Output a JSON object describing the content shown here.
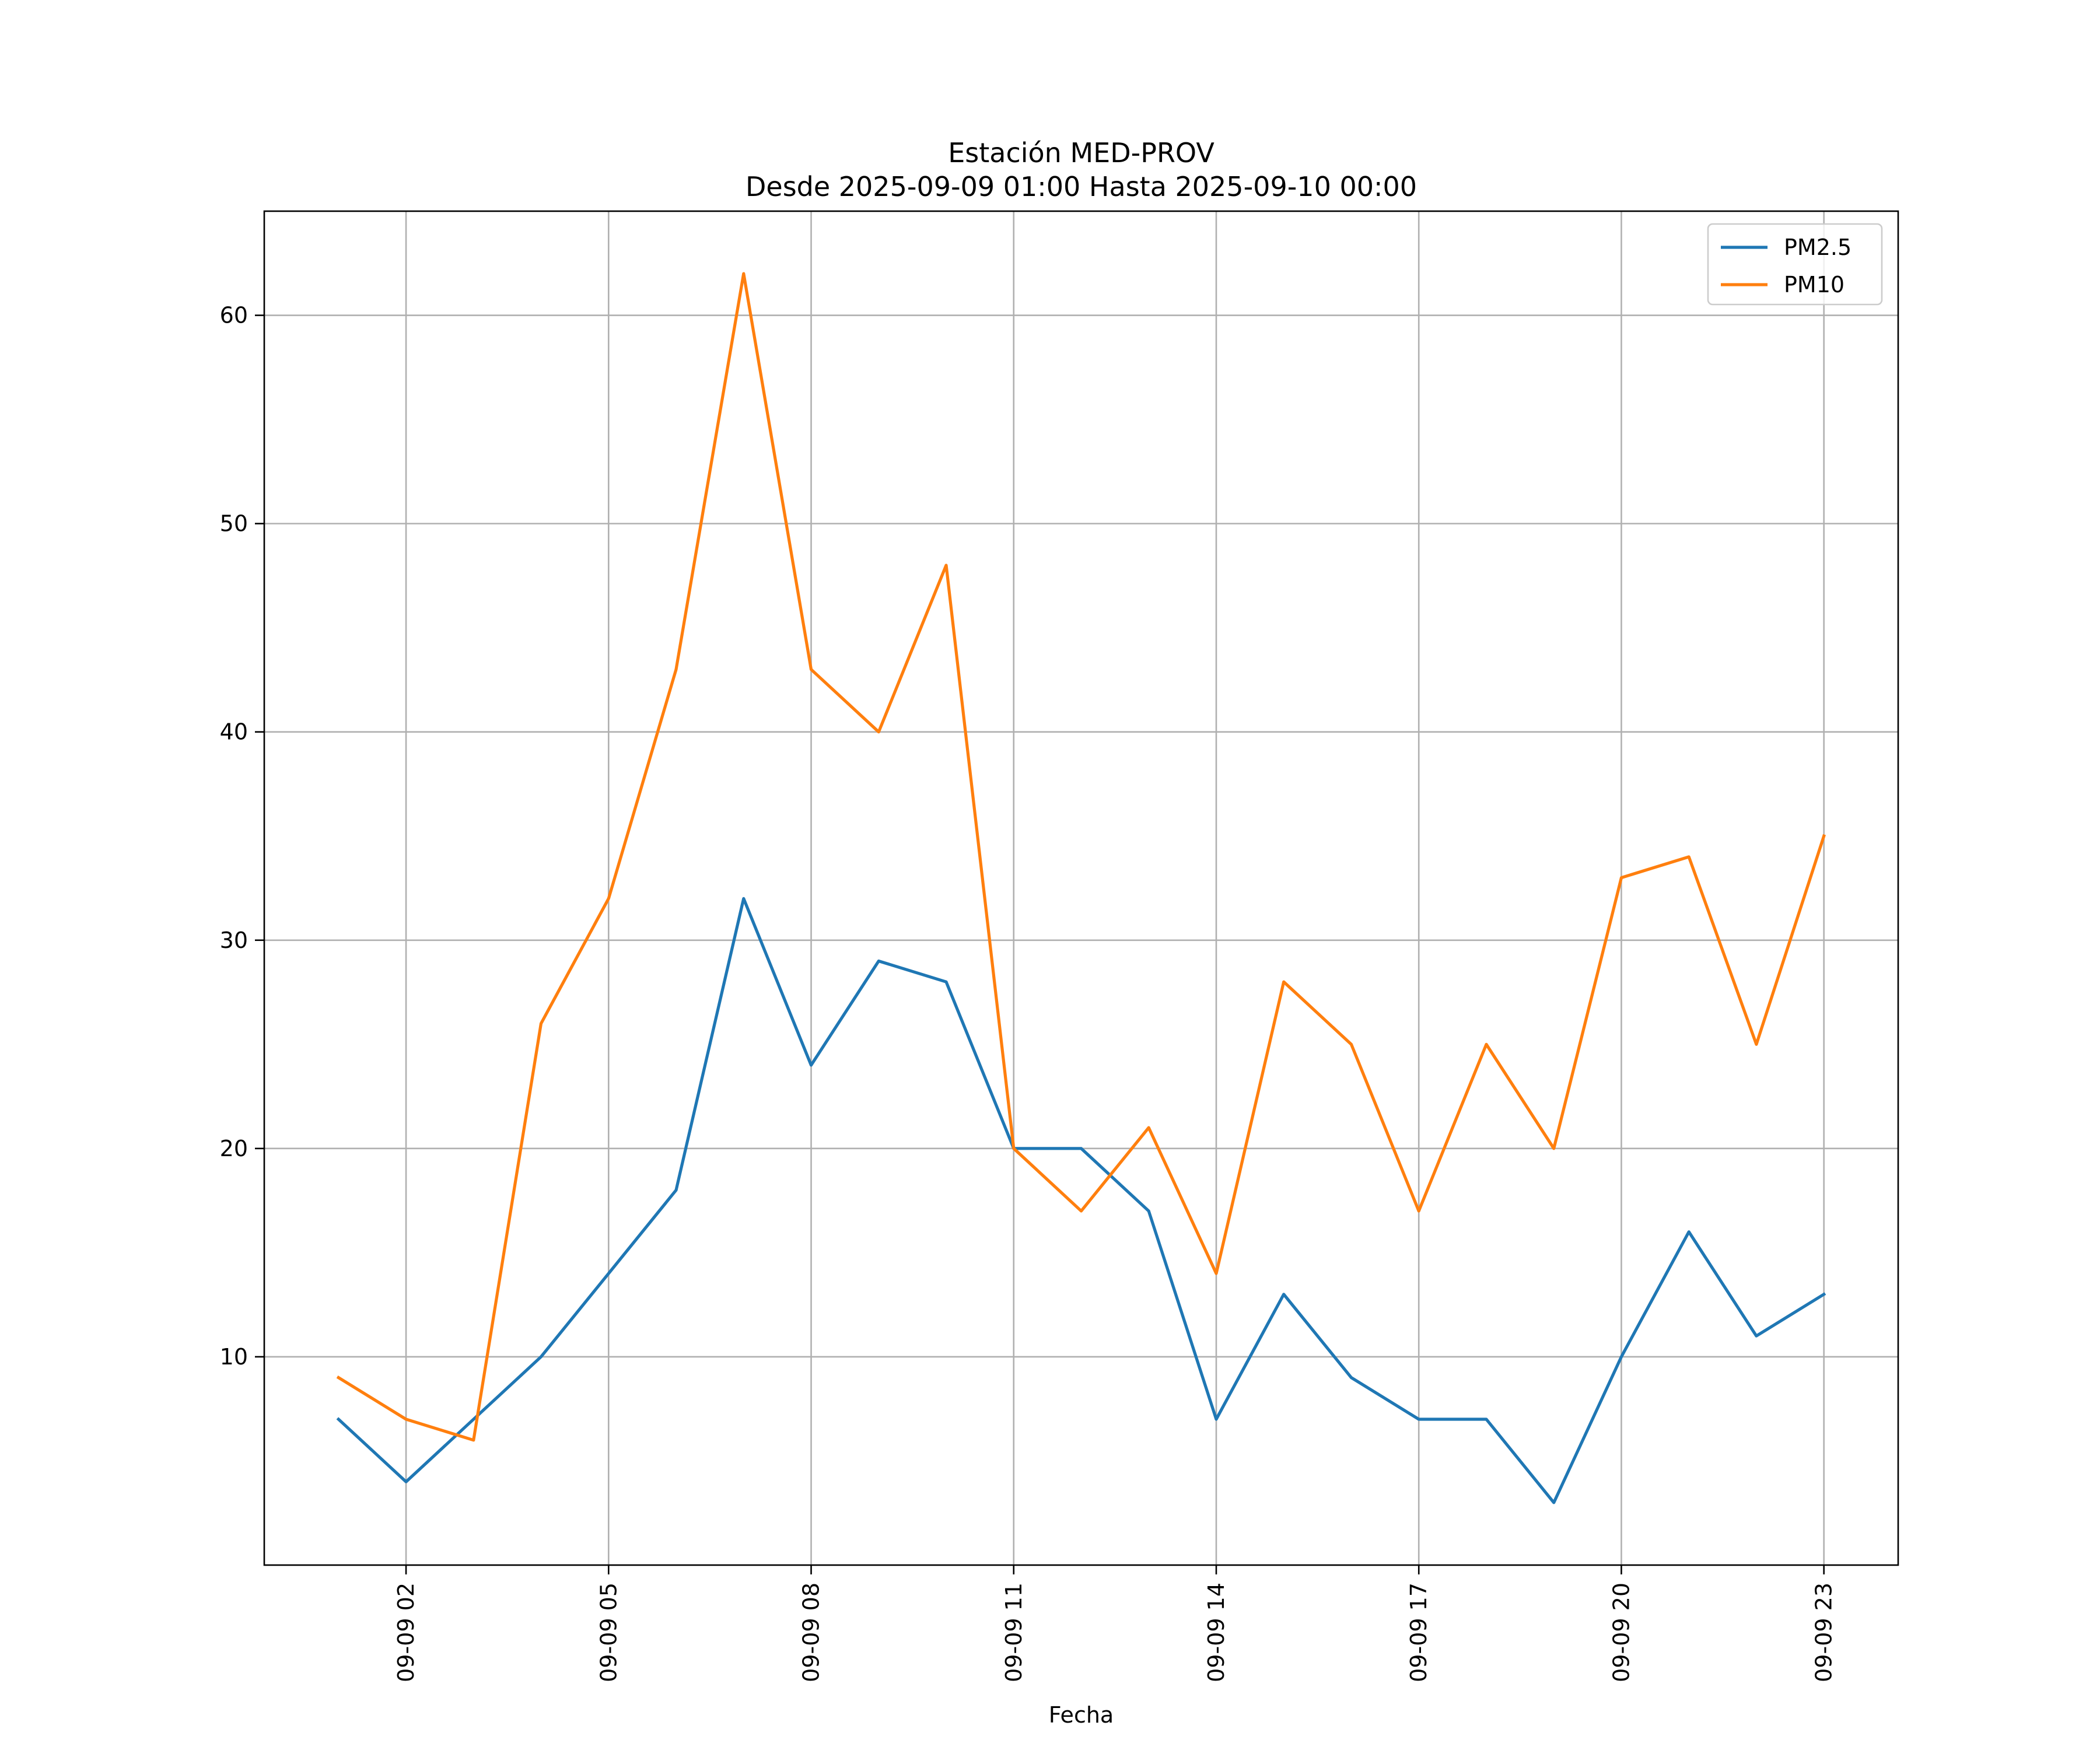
{
  "chart_data": {
    "type": "line",
    "title_line1": "Estación MED-PROV",
    "title_line2": "Desde 2025-09-09 01:00 Hasta 2025-09-10 00:00",
    "xlabel": "Fecha",
    "ylabel": "",
    "x_hours": [
      1,
      2,
      3,
      4,
      5,
      6,
      7,
      8,
      9,
      10,
      11,
      12,
      13,
      14,
      15,
      16,
      17,
      18,
      19,
      20,
      21,
      22,
      23
    ],
    "xlim": [
      -0.1,
      24.1
    ],
    "ylim": [
      0,
      65
    ],
    "x_ticks": [
      {
        "hour": 2,
        "label": "09-09 02"
      },
      {
        "hour": 5,
        "label": "09-09 05"
      },
      {
        "hour": 8,
        "label": "09-09 08"
      },
      {
        "hour": 11,
        "label": "09-09 11"
      },
      {
        "hour": 14,
        "label": "09-09 14"
      },
      {
        "hour": 17,
        "label": "09-09 17"
      },
      {
        "hour": 20,
        "label": "09-09 20"
      },
      {
        "hour": 23,
        "label": "09-09 23"
      }
    ],
    "y_ticks": [
      {
        "value": 10,
        "label": "10"
      },
      {
        "value": 20,
        "label": "20"
      },
      {
        "value": 30,
        "label": "30"
      },
      {
        "value": 40,
        "label": "40"
      },
      {
        "value": 50,
        "label": "50"
      },
      {
        "value": 60,
        "label": "60"
      }
    ],
    "grid": true,
    "legend_position": "top-right",
    "series": [
      {
        "name": "PM2.5",
        "color": "#1f77b4",
        "values": [
          7,
          4,
          7,
          10,
          14,
          18,
          32,
          24,
          29,
          28,
          20,
          20,
          17,
          7,
          13,
          9,
          7,
          7,
          3,
          10,
          16,
          11,
          13
        ]
      },
      {
        "name": "PM10",
        "color": "#ff7f0e",
        "values": [
          9,
          7,
          6,
          26,
          32,
          43,
          62,
          43,
          40,
          48,
          20,
          17,
          21,
          14,
          28,
          25,
          17,
          25,
          20,
          33,
          34,
          25,
          35
        ]
      }
    ]
  }
}
